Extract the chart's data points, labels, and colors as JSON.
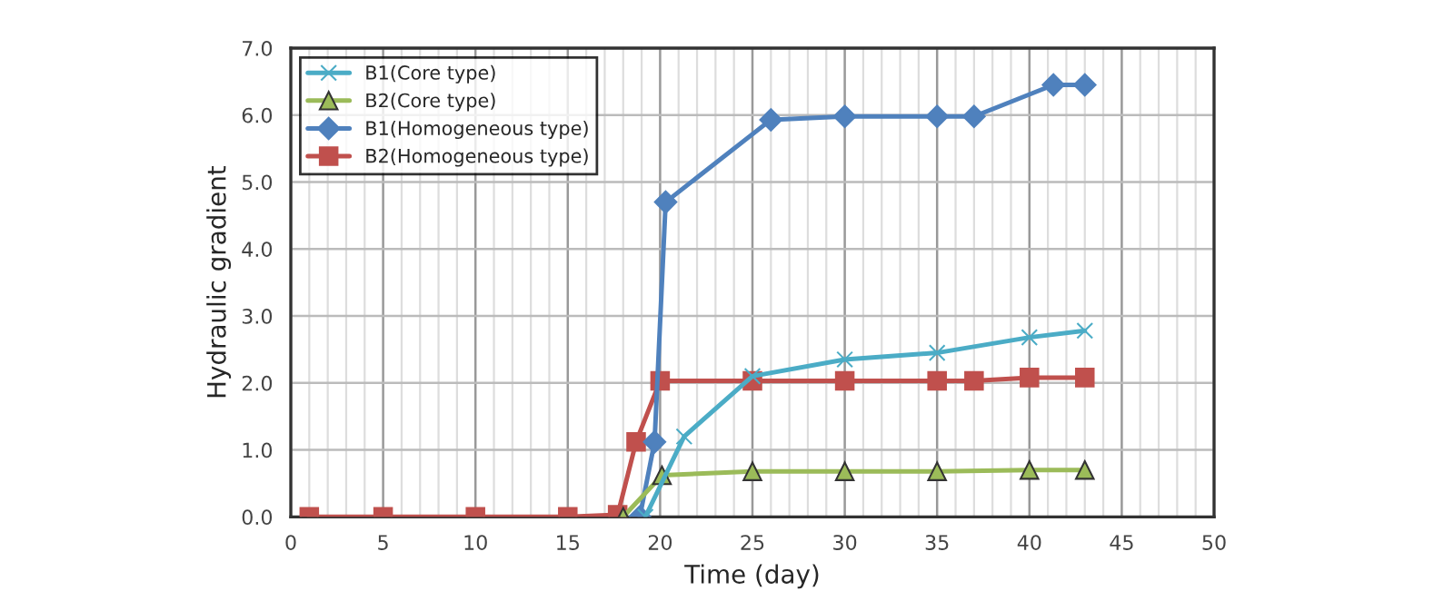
{
  "chart_data": {
    "type": "line",
    "xlabel": "Time (day)",
    "ylabel": "Hydraulic gradient",
    "xlim": [
      0,
      50
    ],
    "xticks": [
      0,
      5,
      10,
      15,
      20,
      25,
      30,
      35,
      40,
      45,
      50
    ],
    "ylim": [
      0,
      7
    ],
    "yticks": [
      {
        "value": 0,
        "label": "0.0"
      },
      {
        "value": 1,
        "label": "1.0"
      },
      {
        "value": 2,
        "label": "2.0"
      },
      {
        "value": 3,
        "label": "3.0"
      },
      {
        "value": 4,
        "label": "4.0"
      },
      {
        "value": 5,
        "label": "5.0"
      },
      {
        "value": 6,
        "label": "6.0"
      },
      {
        "value": 7,
        "label": "7.0"
      }
    ],
    "grid": true,
    "legend": "top left",
    "series": [
      {
        "name": "B1(Core type)",
        "color": "#4bacc6",
        "marker": "cross",
        "x": [
          19.2,
          21.3,
          25,
          30,
          35,
          40,
          43
        ],
        "values": [
          0,
          1.2,
          2.1,
          2.35,
          2.45,
          2.68,
          2.78
        ]
      },
      {
        "name": "B2(Core type)",
        "color": "#9bbb59",
        "marker": "triangle",
        "x": [
          18,
          20.1,
          25,
          30,
          35,
          40,
          43
        ],
        "values": [
          0,
          0.62,
          0.68,
          0.68,
          0.68,
          0.7,
          0.7
        ]
      },
      {
        "name": "B1(Homogeneous type)",
        "color": "#4f81bd",
        "marker": "diamond",
        "x": [
          18.9,
          19.7,
          20.3,
          26,
          30,
          35,
          37,
          41.3,
          43
        ],
        "values": [
          0,
          1.12,
          4.7,
          5.93,
          5.98,
          5.98,
          5.98,
          6.45,
          6.45
        ]
      },
      {
        "name": "B2(Homogeneous type)",
        "color": "#c0504d",
        "marker": "square",
        "x": [
          1,
          5,
          10,
          15,
          17.7,
          18.7,
          20,
          25,
          30,
          35,
          37,
          40,
          43
        ],
        "values": [
          0,
          0,
          0,
          0,
          0.03,
          1.12,
          2.03,
          2.03,
          2.03,
          2.03,
          2.03,
          2.08,
          2.08
        ]
      }
    ]
  }
}
